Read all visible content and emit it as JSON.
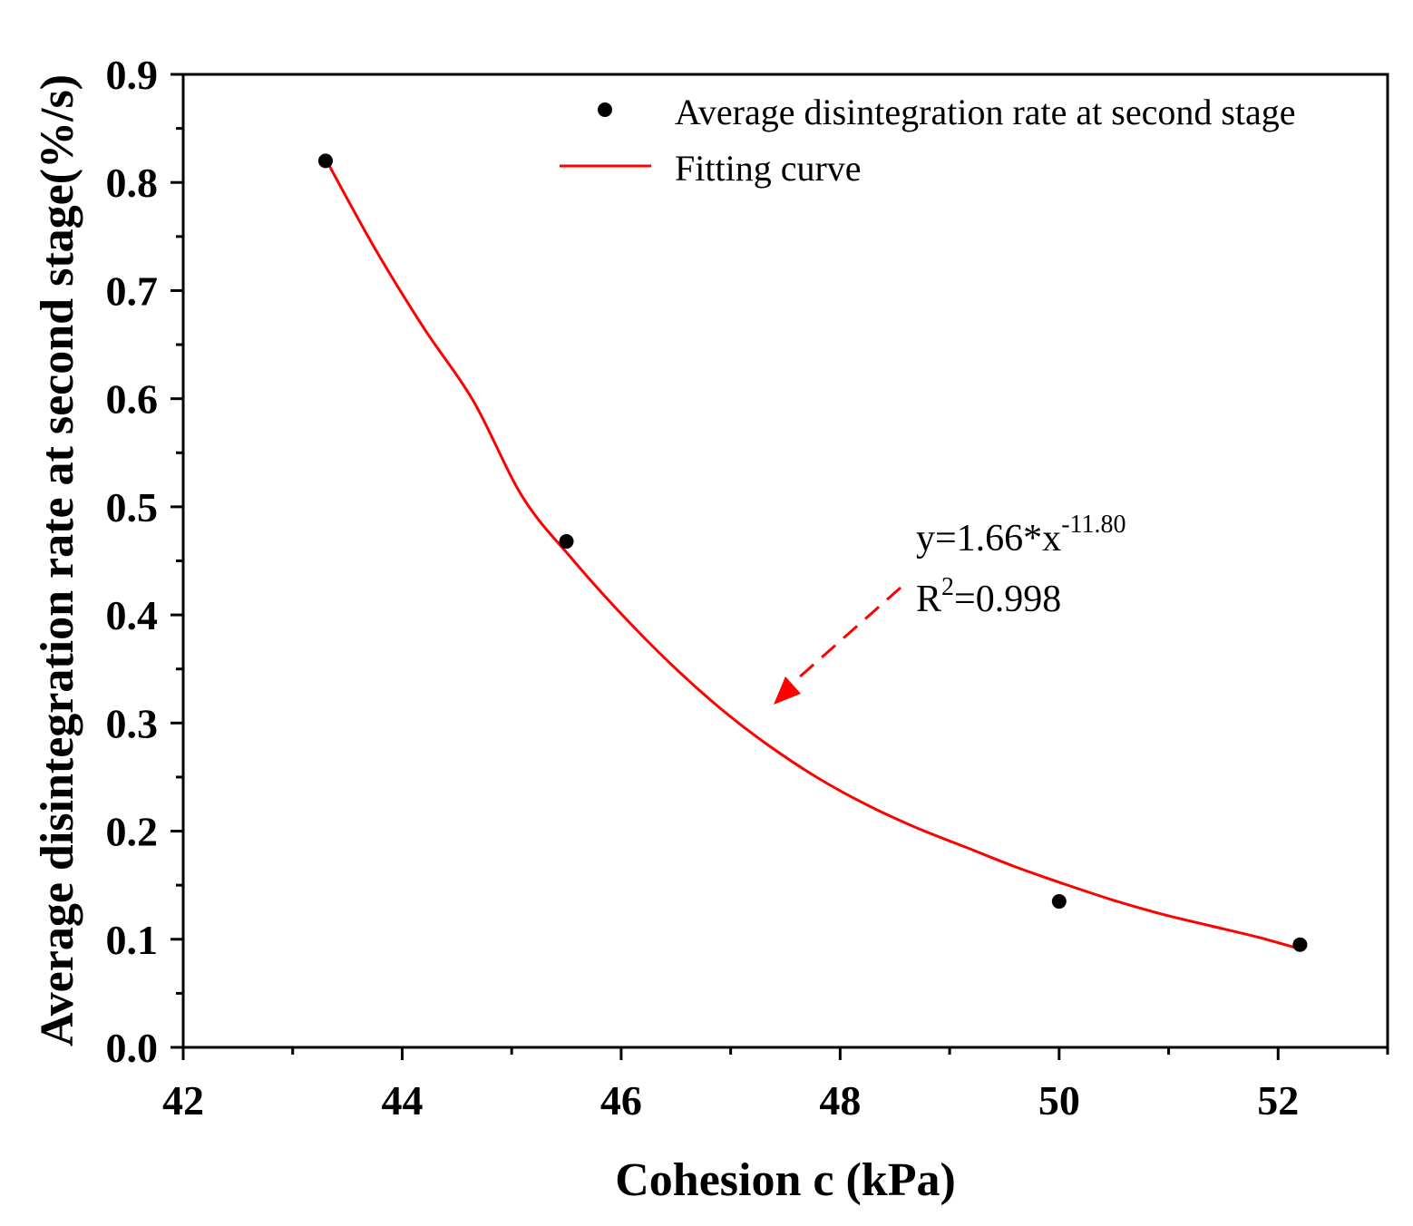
{
  "chart_data": {
    "type": "scatter",
    "xlabel": "Cohesion  c (kPa)",
    "ylabel": "Average disintegration rate at second stage(%/s)",
    "xlim": [
      42,
      53
    ],
    "ylim": [
      0,
      0.9
    ],
    "x_ticks": [
      42,
      44,
      46,
      48,
      50,
      52
    ],
    "x_tick_labels": [
      "42",
      "44",
      "46",
      "48",
      "50",
      "52"
    ],
    "y_ticks": [
      0.0,
      0.1,
      0.2,
      0.3,
      0.4,
      0.5,
      0.6,
      0.7,
      0.8,
      0.9
    ],
    "y_tick_labels": [
      "0.0",
      "0.1",
      "0.2",
      "0.3",
      "0.4",
      "0.5",
      "0.6",
      "0.7",
      "0.8",
      "0.9"
    ],
    "grid": false,
    "legend_position": "top-right",
    "series": [
      {
        "name": "Average disintegration rate at second stage",
        "kind": "scatter",
        "color": "#000000",
        "x": [
          43.3,
          45.5,
          50.0,
          52.2
        ],
        "y": [
          0.82,
          0.468,
          0.135,
          0.095
        ]
      },
      {
        "name": "Fitting curve",
        "kind": "line",
        "color": "#ff0000",
        "x": [
          43.3,
          43.75,
          44.2,
          44.65,
          45.1,
          45.55,
          46.0,
          46.45,
          46.9,
          47.35,
          47.8,
          48.25,
          48.7,
          49.15,
          49.6,
          50.05,
          50.5,
          50.95,
          51.4,
          51.85,
          52.2
        ],
        "y": [
          0.822,
          0.739,
          0.665,
          0.598,
          0.509,
          0.452,
          0.401,
          0.355,
          0.314,
          0.279,
          0.249,
          0.224,
          0.203,
          0.185,
          0.167,
          0.151,
          0.136,
          0.123,
          0.112,
          0.101,
          0.091
        ]
      }
    ],
    "annotation": {
      "equation_prefix": "y=1.66*x",
      "equation_exponent": "-11.80",
      "r2_prefix": "R",
      "r2_exponent": "2",
      "r2_value": "=0.998",
      "arrow_color": "#ff0000"
    }
  }
}
